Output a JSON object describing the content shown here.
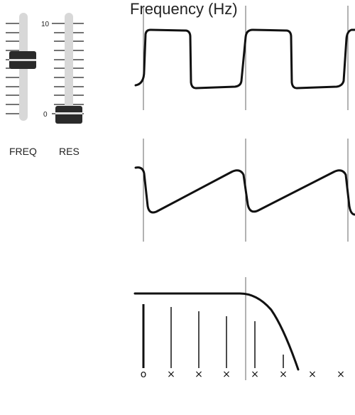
{
  "faders": [
    {
      "label": "FREQ",
      "value": 6.0
    },
    {
      "label": "RES",
      "value": 0.0
    }
  ],
  "scale": {
    "max_label": "10",
    "min_label": "0"
  },
  "spectrum": {
    "xlabel": "Frequency (Hz)",
    "harmonic_markers": [
      "o",
      "×",
      "×",
      "×",
      "×",
      "×",
      "×",
      "×"
    ]
  }
}
